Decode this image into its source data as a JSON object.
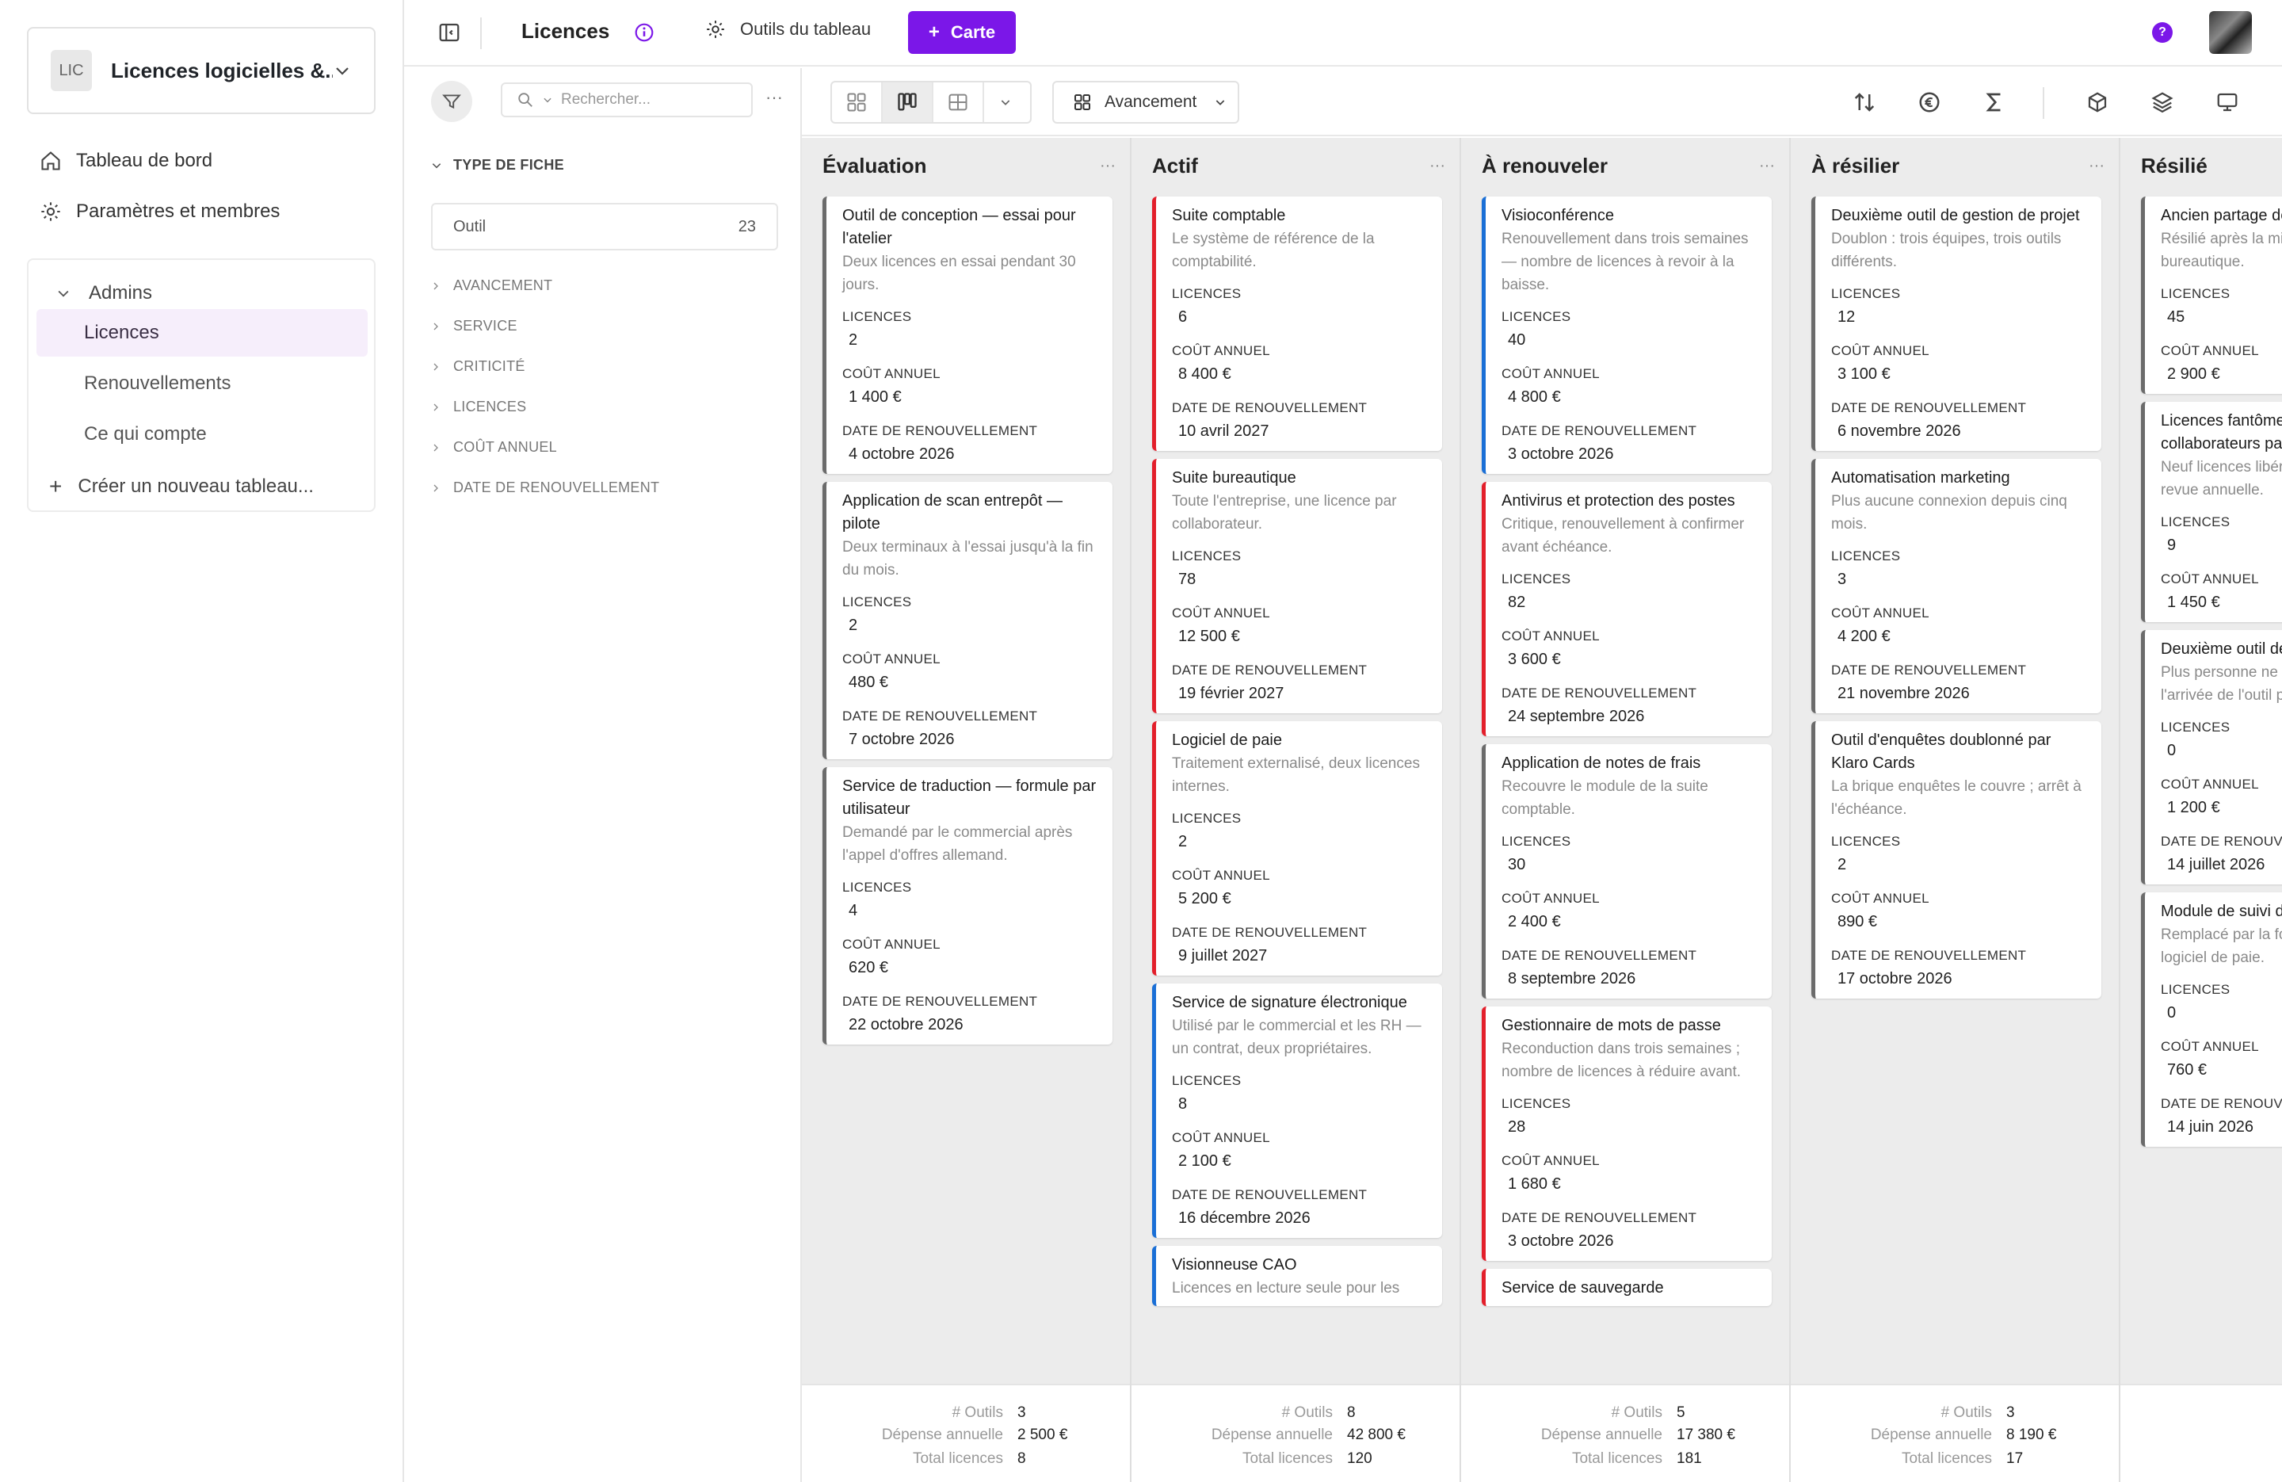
{
  "workspace": {
    "logo": "LIC",
    "name": "Licences logicielles &..."
  },
  "nav": {
    "dashboard": "Tableau de bord",
    "settings": "Paramètres et membres"
  },
  "group": {
    "label": "Admins",
    "items": [
      "Licences",
      "Renouvellements",
      "Ce qui compte"
    ],
    "new_label": "Créer un nouveau tableau..."
  },
  "topbar": {
    "title": "Licences",
    "tools_label": "Outils du tableau",
    "add_button": "Carte",
    "help": "?"
  },
  "filters": {
    "search_placeholder": "Rechercher...",
    "more": "···",
    "type_section": "TYPE DE FICHE",
    "chip_label": "Outil",
    "chip_count": "23",
    "rows": [
      "AVANCEMENT",
      "SERVICE",
      "CRITICITÉ",
      "LICENCES",
      "COÛT ANNUEL",
      "DATE DE RENOUVELLEMENT"
    ]
  },
  "toolbar": {
    "group_by": "Avancement"
  },
  "field_labels": {
    "licences": "LICENCES",
    "cost": "COÛT ANNUEL",
    "renewal": "DATE DE RENOUVELLEMENT"
  },
  "footer_labels": {
    "count": "# Outils",
    "spend": "Dépense annuelle",
    "total": "Total licences"
  },
  "columns": [
    {
      "title": "Évaluation",
      "more": "···",
      "footer": {
        "count": "3",
        "spend": "2 500 €",
        "total": "8"
      },
      "cards": [
        {
          "color": "gray",
          "title": "Outil de conception — essai pour l'atelier",
          "desc": "Deux licences en essai pendant 30 jours.",
          "licences": "2",
          "cost": "1 400 €",
          "renewal": "4 octobre 2026"
        },
        {
          "color": "gray",
          "title": "Application de scan entrepôt — pilote",
          "desc": "Deux terminaux à l'essai jusqu'à la fin du mois.",
          "licences": "2",
          "cost": "480 €",
          "renewal": "7 octobre 2026"
        },
        {
          "color": "gray",
          "title": "Service de traduction — formule par utilisateur",
          "desc": "Demandé par le commercial après l'appel d'offres allemand.",
          "licences": "4",
          "cost": "620 €",
          "renewal": "22 octobre 2026"
        }
      ]
    },
    {
      "title": "Actif",
      "more": "···",
      "footer": {
        "count": "8",
        "spend": "42 800 €",
        "total": "120"
      },
      "cards": [
        {
          "color": "red",
          "title": "Suite comptable",
          "desc": "Le système de référence de la comptabilité.",
          "licences": "6",
          "cost": "8 400 €",
          "renewal": "10 avril 2027"
        },
        {
          "color": "red",
          "title": "Suite bureautique",
          "desc": "Toute l'entreprise, une licence par collaborateur.",
          "licences": "78",
          "cost": "12 500 €",
          "renewal": "19 février 2027"
        },
        {
          "color": "red",
          "title": "Logiciel de paie",
          "desc": "Traitement externalisé, deux licences internes.",
          "licences": "2",
          "cost": "5 200 €",
          "renewal": "9 juillet 2027"
        },
        {
          "color": "blue",
          "title": "Service de signature électronique",
          "desc": "Utilisé par le commercial et les RH — un contrat, deux propriétaires.",
          "licences": "8",
          "cost": "2 100 €",
          "renewal": "16 décembre 2026"
        },
        {
          "color": "blue",
          "title": "Visionneuse CAO",
          "desc": "Licences en lecture seule pour les",
          "licences": "",
          "cost": "",
          "renewal": ""
        }
      ]
    },
    {
      "title": "À renouveler",
      "more": "···",
      "footer": {
        "count": "5",
        "spend": "17 380 €",
        "total": "181"
      },
      "cards": [
        {
          "color": "blue",
          "title": "Visioconférence",
          "desc": "Renouvellement dans trois semaines — nombre de licences à revoir à la baisse.",
          "licences": "40",
          "cost": "4 800 €",
          "renewal": "3 octobre 2026"
        },
        {
          "color": "red",
          "title": "Antivirus et protection des postes",
          "desc": "Critique, renouvellement à confirmer avant échéance.",
          "licences": "82",
          "cost": "3 600 €",
          "renewal": "24 septembre 2026"
        },
        {
          "color": "gray",
          "title": "Application de notes de frais",
          "desc": "Recouvre le module de la suite comptable.",
          "licences": "30",
          "cost": "2 400 €",
          "renewal": "8 septembre 2026"
        },
        {
          "color": "red",
          "title": "Gestionnaire de mots de passe",
          "desc": "Reconduction dans trois semaines ; nombre de licences à réduire avant.",
          "licences": "28",
          "cost": "1 680 €",
          "renewal": "3 octobre 2026"
        },
        {
          "color": "red",
          "title": "Service de sauvegarde",
          "desc": "",
          "licences": "",
          "cost": "",
          "renewal": ""
        }
      ]
    },
    {
      "title": "À résilier",
      "more": "···",
      "footer": {
        "count": "3",
        "spend": "8 190 €",
        "total": "17"
      },
      "cards": [
        {
          "color": "gray",
          "title": "Deuxième outil de gestion de projet",
          "desc": "Doublon : trois équipes, trois outils différents.",
          "licences": "12",
          "cost": "3 100 €",
          "renewal": "6 novembre 2026"
        },
        {
          "color": "gray",
          "title": "Automatisation marketing",
          "desc": "Plus aucune connexion depuis cinq mois.",
          "licences": "3",
          "cost": "4 200 €",
          "renewal": "21 novembre 2026"
        },
        {
          "color": "gray",
          "title": "Outil d'enquêtes doublonné par Klaro Cards",
          "desc": "La brique enquêtes le couvre ; arrêt à l'échéance.",
          "licences": "2",
          "cost": "890 €",
          "renewal": "17 octobre 2026"
        }
      ]
    },
    {
      "title": "Résilié",
      "more": "",
      "footer": {
        "count": "",
        "spend": "",
        "total": ""
      },
      "cards": [
        {
          "color": "gray",
          "title": "Ancien partage de fichiers",
          "desc": "Résilié après la migration vers la suite bureautique.",
          "licences": "45",
          "cost": "2 900 €",
          "renewal": ""
        },
        {
          "color": "gray",
          "title": "Licences fantômes des anciens collaborateurs partis",
          "desc": "Neuf licences libérées lors de la revue annuelle.",
          "licences": "9",
          "cost": "1 450 €",
          "renewal": ""
        },
        {
          "color": "gray",
          "title": "Deuxième outil de visioconférence",
          "desc": "Plus personne ne l'utilise depuis l'arrivée de l'outil principal.",
          "licences": "0",
          "cost": "1 200 €",
          "renewal": "14 juillet 2026"
        },
        {
          "color": "gray",
          "title": "Module de suivi des temps",
          "desc": "Remplacé par la fonction temps du logiciel de paie.",
          "licences": "0",
          "cost": "760 €",
          "renewal": "14 juin 2026"
        }
      ]
    }
  ],
  "colors": {
    "accent": "#7b17e8",
    "critical": "#e31f2b",
    "shared": "#1a6fd6",
    "neutral": "#6b6b6b"
  }
}
